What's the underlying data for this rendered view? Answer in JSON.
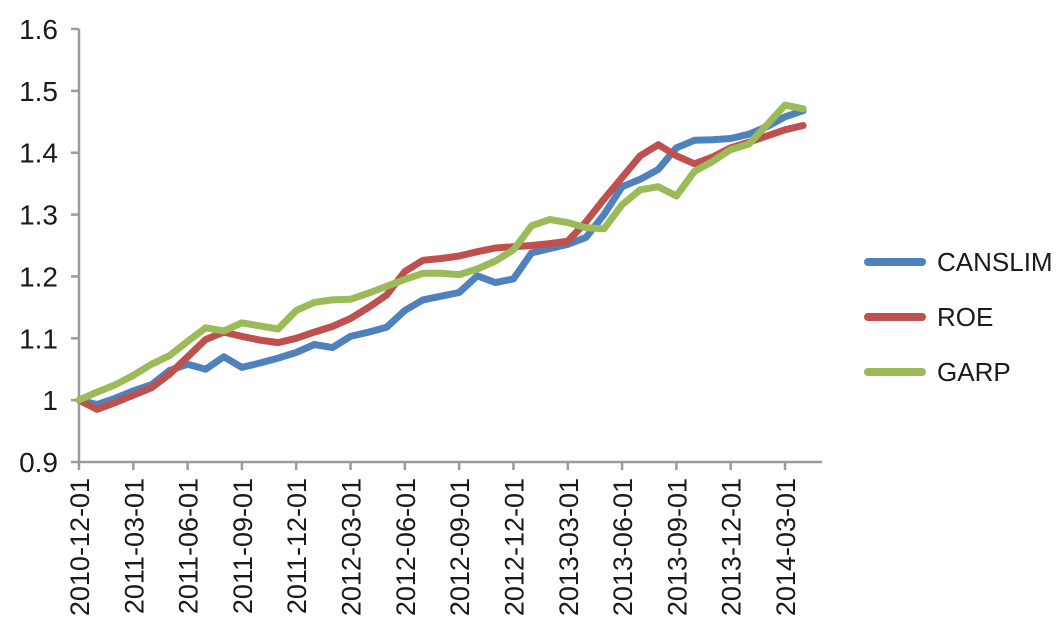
{
  "chart_data": {
    "type": "line",
    "title": "",
    "xlabel": "",
    "ylabel": "",
    "background": "#ffffff",
    "axis_color": "#9b9b9b",
    "text_color": "#1a1a1a",
    "grid": false,
    "legend_position": "right",
    "ylim": [
      0.9,
      1.6
    ],
    "y_tick_labels": [
      "0.9",
      "1",
      "1.1",
      "1.2",
      "1.3",
      "1.4",
      "1.5",
      "1.6"
    ],
    "x_tick_every": 3,
    "x_tick_labels": [
      "2010-12-01",
      "2011-03-01",
      "2011-06-01",
      "2011-09-01",
      "2011-12-01",
      "2012-03-01",
      "2012-06-01",
      "2012-09-01",
      "2012-12-01",
      "2013-03-01",
      "2013-06-01",
      "2013-09-01",
      "2013-12-01",
      "2014-03-01"
    ],
    "x": [
      "2010-12-01",
      "2011-01-01",
      "2011-02-01",
      "2011-03-01",
      "2011-04-01",
      "2011-05-01",
      "2011-06-01",
      "2011-07-01",
      "2011-08-01",
      "2011-09-01",
      "2011-10-01",
      "2011-11-01",
      "2011-12-01",
      "2012-01-01",
      "2012-02-01",
      "2012-03-01",
      "2012-04-01",
      "2012-05-01",
      "2012-06-01",
      "2012-07-01",
      "2012-08-01",
      "2012-09-01",
      "2012-10-01",
      "2012-11-01",
      "2012-12-01",
      "2013-01-01",
      "2013-02-01",
      "2013-03-01",
      "2013-04-01",
      "2013-05-01",
      "2013-06-01",
      "2013-07-01",
      "2013-08-01",
      "2013-09-01",
      "2013-10-01",
      "2013-11-01",
      "2013-12-01",
      "2014-01-01",
      "2014-02-01",
      "2014-03-01",
      "2014-04-01"
    ],
    "series": [
      {
        "name": "CANSLIM",
        "color": "#4F81BD",
        "values": [
          1.0,
          0.993,
          1.003,
          1.015,
          1.025,
          1.048,
          1.058,
          1.05,
          1.07,
          1.053,
          1.06,
          1.068,
          1.077,
          1.09,
          1.085,
          1.103,
          1.11,
          1.118,
          1.145,
          1.162,
          1.168,
          1.174,
          1.201,
          1.19,
          1.196,
          1.238,
          1.245,
          1.252,
          1.263,
          1.3,
          1.345,
          1.357,
          1.373,
          1.408,
          1.42,
          1.421,
          1.423,
          1.43,
          1.442,
          1.458,
          1.468
        ]
      },
      {
        "name": "ROE",
        "color": "#C0504D",
        "values": [
          1.0,
          0.985,
          0.996,
          1.008,
          1.02,
          1.042,
          1.07,
          1.098,
          1.11,
          1.103,
          1.097,
          1.093,
          1.1,
          1.11,
          1.119,
          1.132,
          1.15,
          1.17,
          1.208,
          1.226,
          1.229,
          1.233,
          1.24,
          1.246,
          1.248,
          1.25,
          1.253,
          1.257,
          1.288,
          1.325,
          1.36,
          1.395,
          1.413,
          1.395,
          1.382,
          1.393,
          1.408,
          1.417,
          1.427,
          1.437,
          1.444
        ]
      },
      {
        "name": "GARP",
        "color": "#9BBB59",
        "values": [
          1.0,
          1.013,
          1.025,
          1.04,
          1.058,
          1.072,
          1.095,
          1.117,
          1.112,
          1.125,
          1.12,
          1.115,
          1.145,
          1.158,
          1.162,
          1.163,
          1.173,
          1.184,
          1.195,
          1.205,
          1.205,
          1.203,
          1.212,
          1.225,
          1.243,
          1.282,
          1.292,
          1.287,
          1.279,
          1.277,
          1.316,
          1.34,
          1.345,
          1.33,
          1.37,
          1.386,
          1.405,
          1.414,
          1.445,
          1.477,
          1.471
        ]
      }
    ]
  }
}
